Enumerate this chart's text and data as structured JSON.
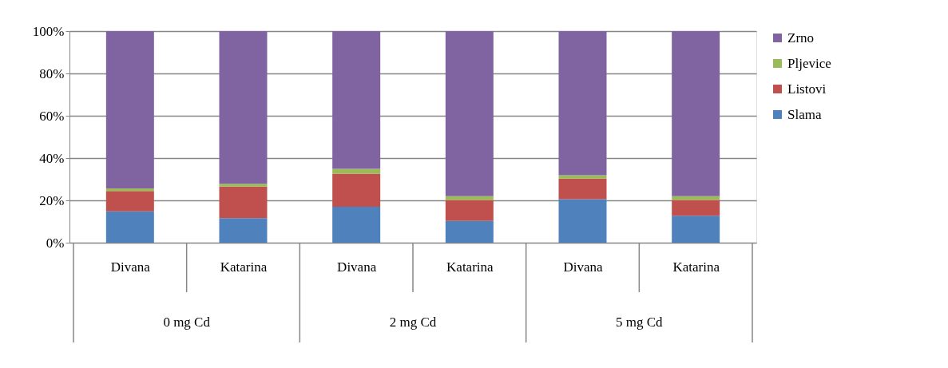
{
  "chart_data": {
    "type": "bar",
    "stacked": true,
    "categories": [
      "Divana",
      "Katarina",
      "Divana",
      "Katarina",
      "Divana",
      "Katarina"
    ],
    "series": [
      {
        "name": "Slama",
        "color": "#4f81bd",
        "values": [
          14.8,
          11.6,
          17.0,
          10.3,
          20.6,
          12.7
        ]
      },
      {
        "name": "Listovi",
        "color": "#c0504d",
        "values": [
          9.6,
          14.9,
          15.6,
          9.9,
          9.7,
          7.5
        ]
      },
      {
        "name": "Pljevice",
        "color": "#9bbb59",
        "values": [
          1.3,
          1.3,
          2.3,
          1.8,
          1.6,
          1.8
        ]
      },
      {
        "name": "Zrno",
        "color": "#8064a2",
        "values": [
          74.3,
          72.2,
          65.1,
          78.0,
          68.1,
          78.0
        ]
      }
    ],
    "ylim": [
      0,
      100
    ],
    "yticks": [
      {
        "value": 0,
        "label": "0%"
      },
      {
        "value": 20,
        "label": "20%"
      },
      {
        "value": 40,
        "label": "40%"
      },
      {
        "value": 60,
        "label": "60%"
      },
      {
        "value": 80,
        "label": "80%"
      },
      {
        "value": 100,
        "label": "100%"
      }
    ],
    "annotations": [
      "0 mg Cd",
      "2 mg Cd",
      "5 mg Cd"
    ],
    "grid": "y",
    "legend": "right"
  }
}
